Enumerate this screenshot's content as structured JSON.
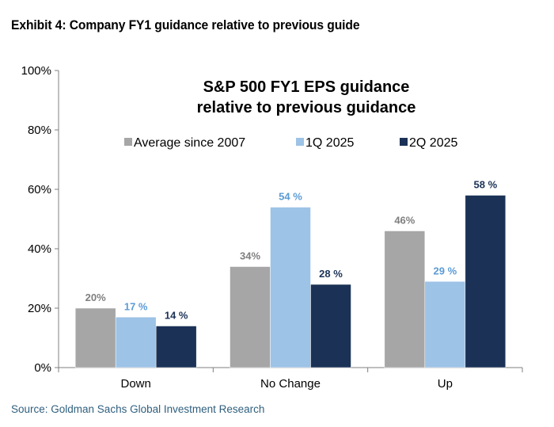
{
  "exhibit_title": "Exhibit 4: Company FY1 guidance relative to previous guide",
  "source": "Source: Goldman Sachs Global Investment Research",
  "colors": {
    "average": "#a6a6a6",
    "q1": "#9dc3e6",
    "q2": "#1b3256",
    "label_average": "#7f7f7f",
    "label_q1": "#5b9bd5",
    "label_q2": "#1b3256",
    "axis": "#7f7f7f"
  },
  "chart_data": {
    "type": "bar",
    "title_lines": [
      "S&P 500 FY1 EPS guidance",
      "relative to previous guidance"
    ],
    "categories": [
      "Down",
      "No Change",
      "Up"
    ],
    "series": [
      {
        "name": "Average since 2007",
        "values": [
          20,
          34,
          46
        ],
        "labels": [
          "20%",
          "34%",
          "46%"
        ]
      },
      {
        "name": "1Q 2025",
        "values": [
          17,
          54,
          29
        ],
        "labels": [
          "17 %",
          "54 %",
          "29 %"
        ]
      },
      {
        "name": "2Q 2025",
        "values": [
          14,
          28,
          58
        ],
        "labels": [
          "14 %",
          "28 %",
          "58 %"
        ]
      }
    ],
    "yticks": [
      "0%",
      "20%",
      "40%",
      "60%",
      "80%",
      "100%"
    ],
    "ylim": [
      0,
      100
    ],
    "xlabel": "",
    "ylabel": "",
    "legend": "top-center"
  }
}
